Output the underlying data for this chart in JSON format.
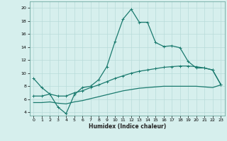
{
  "title": "",
  "xlabel": "Humidex (Indice chaleur)",
  "ylabel": "",
  "bg_color": "#d6efed",
  "grid_color": "#b8dbd9",
  "line_color": "#1a7a6e",
  "ylim": [
    3.5,
    21.0
  ],
  "xlim": [
    -0.5,
    23.5
  ],
  "yticks": [
    4,
    6,
    8,
    10,
    12,
    14,
    16,
    18,
    20
  ],
  "xticks": [
    0,
    1,
    2,
    3,
    4,
    5,
    6,
    7,
    8,
    9,
    10,
    11,
    12,
    13,
    14,
    15,
    16,
    17,
    18,
    19,
    20,
    21,
    22,
    23
  ],
  "line1_x": [
    0,
    1,
    2,
    3,
    4,
    5,
    6,
    7,
    8,
    9,
    10,
    11,
    12,
    13,
    14,
    15,
    16,
    17,
    18,
    19,
    20,
    21,
    22,
    23
  ],
  "line1_y": [
    9.2,
    7.8,
    6.8,
    4.8,
    3.8,
    6.7,
    7.8,
    8.0,
    9.0,
    11.0,
    14.8,
    18.3,
    19.8,
    17.8,
    17.8,
    14.7,
    14.1,
    14.2,
    13.9,
    11.8,
    10.8,
    10.8,
    10.5,
    8.3
  ],
  "line2_x": [
    0,
    1,
    2,
    3,
    4,
    5,
    6,
    7,
    8,
    9,
    10,
    11,
    12,
    13,
    14,
    15,
    16,
    17,
    18,
    19,
    20,
    21,
    22,
    23
  ],
  "line2_y": [
    6.5,
    6.5,
    6.8,
    6.5,
    6.5,
    7.0,
    7.3,
    7.8,
    8.2,
    8.7,
    9.2,
    9.6,
    10.0,
    10.3,
    10.5,
    10.7,
    10.9,
    11.0,
    11.1,
    11.1,
    11.0,
    10.8,
    10.5,
    8.3
  ],
  "line3_x": [
    0,
    1,
    2,
    3,
    4,
    5,
    6,
    7,
    8,
    9,
    10,
    11,
    12,
    13,
    14,
    15,
    16,
    17,
    18,
    19,
    20,
    21,
    22,
    23
  ],
  "line3_y": [
    5.5,
    5.5,
    5.6,
    5.4,
    5.3,
    5.6,
    5.8,
    6.1,
    6.4,
    6.7,
    7.0,
    7.3,
    7.5,
    7.7,
    7.8,
    7.9,
    8.0,
    8.0,
    8.0,
    8.0,
    8.0,
    7.9,
    7.8,
    8.2
  ],
  "marker": "+",
  "lw": 0.9,
  "ms": 3.5
}
